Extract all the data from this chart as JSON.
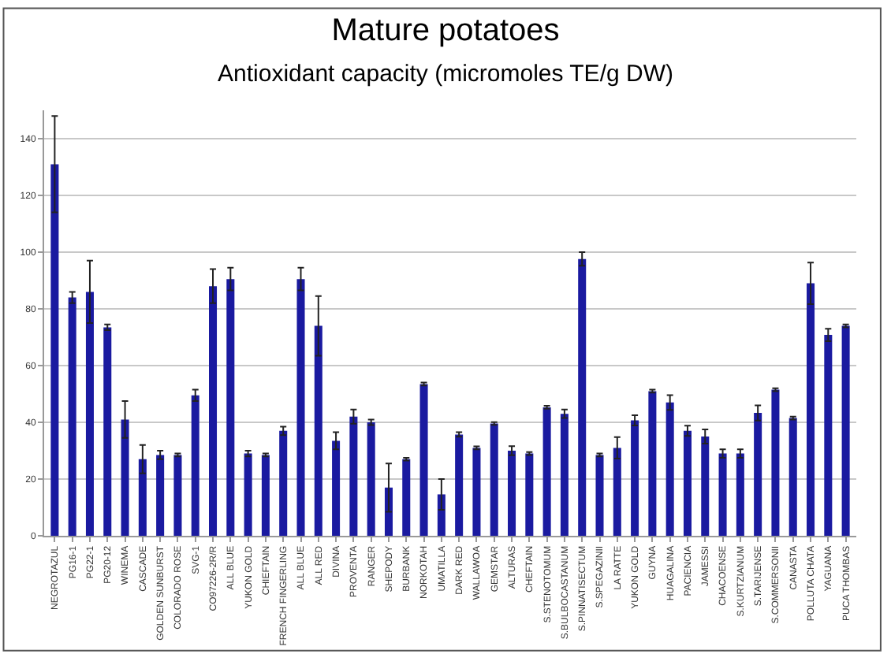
{
  "chart_data": {
    "type": "bar",
    "title": "Mature potatoes",
    "subtitle": "Antioxidant capacity (micromoles TE/g DW)",
    "categories": [
      "NEGROTAZUL",
      "PG16-1",
      "PG22-1",
      "PG20-12",
      "WINEMA",
      "CASCADE",
      "GOLDEN SUNBURST",
      "COLORADO ROSE",
      "SVG-1",
      "CO97226-2R/R",
      "ALL BLUE",
      "YUKON GOLD",
      "CHIEFTAIN",
      "FRENCH FINGERLING",
      "ALL BLUE",
      "ALL RED",
      "DIVINA",
      "PROVENTA",
      "RANGER",
      "SHEPODY",
      "BURBANK",
      "NORKOTAH",
      "UMATILLA",
      "DARK RED",
      "WALLAWOA",
      "GEMSTAR",
      "ALTURAS",
      "CHEFTAIN",
      "S.STENOTOMUM",
      "S.BULBOCASTANUM",
      "S.PINNATISECTUM",
      "S.SPEGAZINII",
      "LA RATTE",
      "YUKON GOLD",
      "GUYNA",
      "HUAGALINA",
      "PACIENCIA",
      "JAMESSI",
      "CHACOENSE",
      "S.KURTZIANUM",
      "S.TARIJENSE",
      "S.COMMERSONII",
      "CANASTA",
      "POLLUTA CHATA",
      "YAGUANA",
      "PUCA THOMBAS"
    ],
    "series": [
      {
        "color": "#1a1aa0",
        "values": [
          131,
          84,
          86,
          73.5,
          41,
          27,
          28.5,
          28.5,
          49.5,
          88,
          90.5,
          29,
          28.5,
          37,
          90.5,
          74,
          33.5,
          42,
          40,
          17,
          27,
          53.5,
          14.6,
          35.7,
          31,
          39.6,
          30,
          29,
          45.3,
          43,
          97.6,
          28.5,
          31,
          40.7,
          51,
          47,
          37,
          35,
          29,
          29,
          43.3,
          51.5,
          41.5,
          89,
          70.8,
          74
        ],
        "errors": [
          17,
          2,
          11,
          1,
          6.5,
          5,
          1.5,
          0.5,
          2,
          6,
          4,
          1,
          0.5,
          1.5,
          4,
          10.5,
          3,
          2.5,
          1,
          8.5,
          0.5,
          0.5,
          5.4,
          0.8,
          0.5,
          0.5,
          1.6,
          0.5,
          0.5,
          1.5,
          2.4,
          0.5,
          3.8,
          1.8,
          0.5,
          2.6,
          1.8,
          2.5,
          1.5,
          1.5,
          2.7,
          0.5,
          0.5,
          7.3,
          2.2,
          0.5
        ]
      }
    ],
    "ylim": [
      0,
      150
    ],
    "yticks": [
      0,
      20,
      40,
      60,
      80,
      100,
      120,
      140
    ],
    "grid": "y"
  }
}
